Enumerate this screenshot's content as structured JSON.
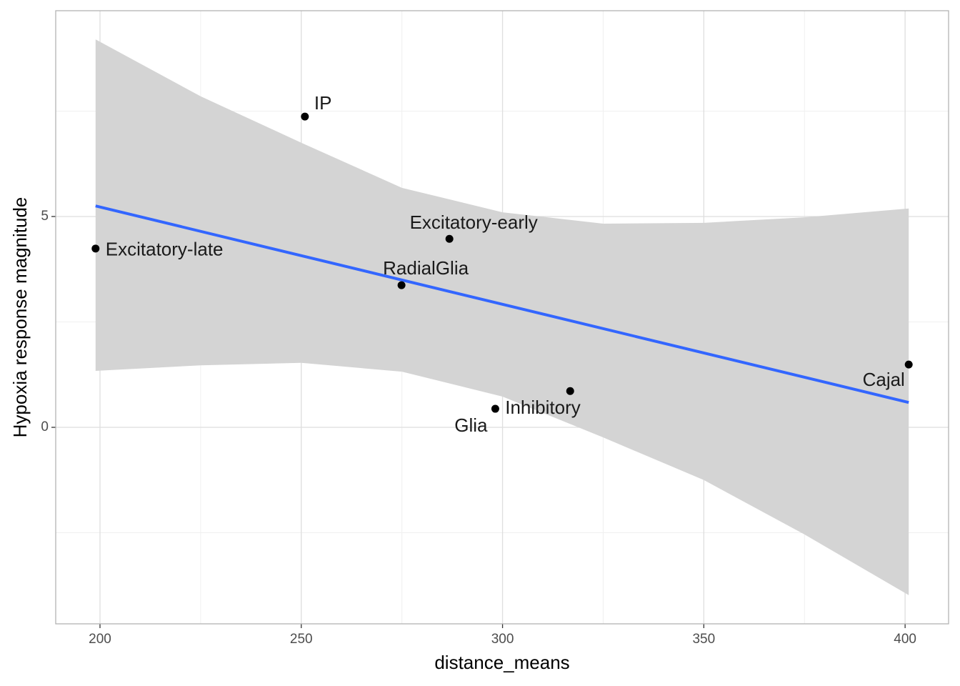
{
  "chart_data": {
    "type": "scatter",
    "x_label": "distance_means",
    "y_label": "Hypoxia response magnitude",
    "labels": [
      "Excitatory-late",
      "IP",
      "Excitatory-early",
      "RadialGlia",
      "Glia",
      "Inhibitory",
      "Cajal"
    ],
    "x": [
      198.9,
      250.9,
      286.8,
      274.9,
      298.2,
      316.8,
      400.9
    ],
    "values": [
      4.24,
      7.37,
      4.47,
      3.37,
      0.44,
      0.86,
      1.49
    ],
    "color": "#000000",
    "fit": {
      "x": [
        198.9,
        400.9
      ],
      "values": [
        5.25,
        0.59
      ],
      "color": "#3366ff"
    },
    "band": {
      "x": [
        198.9,
        225,
        250,
        275,
        300,
        325,
        350,
        375,
        400.9
      ],
      "upper": [
        9.2,
        7.85,
        6.75,
        5.68,
        5.1,
        4.83,
        4.85,
        4.98,
        5.19
      ],
      "lower": [
        1.34,
        1.47,
        1.53,
        1.32,
        0.73,
        -0.24,
        -1.25,
        -2.54,
        -3.98
      ],
      "color": "#d4d4d4"
    },
    "xlim": [
      189.0,
      410.8
    ],
    "ylim": [
      -4.66,
      9.88
    ],
    "xticks": [
      200,
      250,
      300,
      350,
      400
    ],
    "yticks": [
      0,
      5
    ],
    "xminor": [
      225,
      275,
      325,
      375
    ],
    "yminor": [
      -2.5,
      2.5,
      7.5
    ],
    "grid": true
  }
}
